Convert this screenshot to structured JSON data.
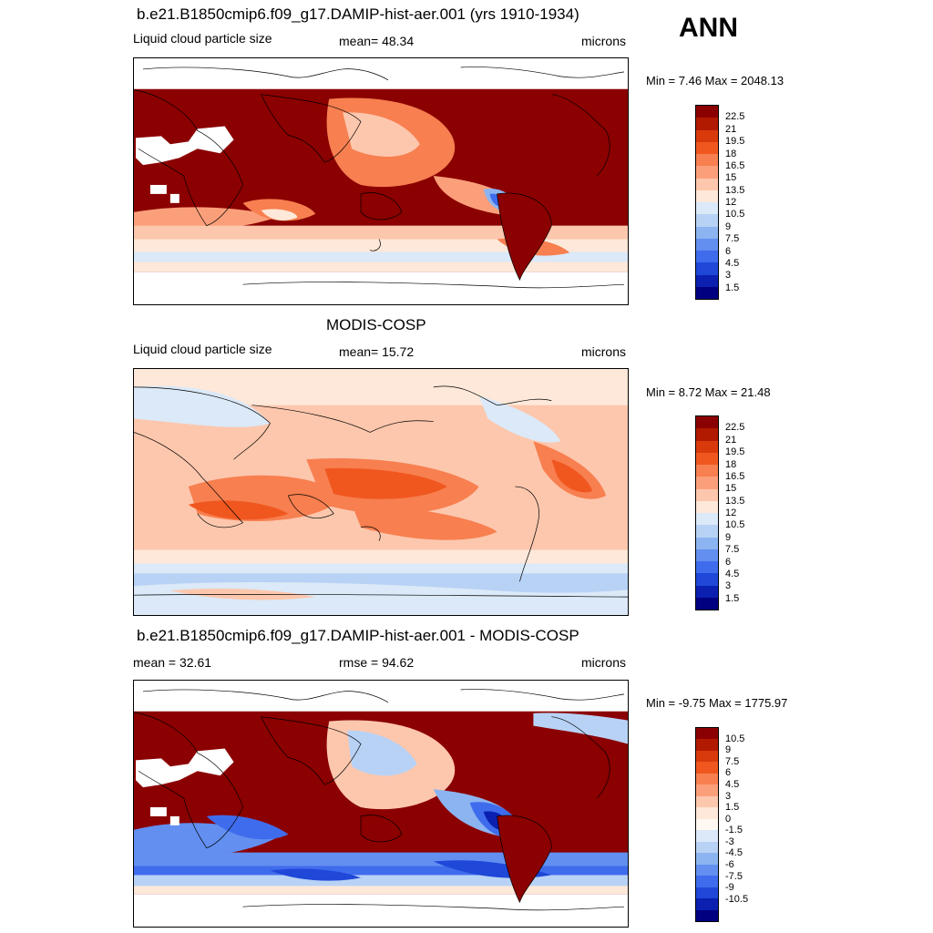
{
  "header": {
    "season": "ANN"
  },
  "panels": [
    {
      "title": "b.e21.B1850cmip6.f09_g17.DAMIP-hist-aer.001 (yrs 1910-1934)",
      "left_label": "Liquid cloud particle size",
      "center_label": "mean=  48.34",
      "right_label": "microns",
      "minmax": "Min =   7.46 Max = 2048.13",
      "colorbar": {
        "colors": [
          "#8b0000",
          "#b21a00",
          "#d93a0c",
          "#f0571f",
          "#f77f50",
          "#fb9f7a",
          "#fdc7ad",
          "#fee8d9",
          "#dbe9f8",
          "#b8d2f5",
          "#8cb4f0",
          "#628ff0",
          "#3f6cec",
          "#1f47d8",
          "#0b20b0",
          "#000080"
        ],
        "ticks": [
          "22.5",
          "21",
          "19.5",
          "18",
          "16.5",
          "15",
          "13.5",
          "12",
          "10.5",
          "9",
          "7.5",
          "6",
          "4.5",
          "3",
          "1.5"
        ]
      }
    },
    {
      "title": "MODIS-COSP",
      "left_label": "Liquid cloud particle size",
      "center_label": "mean=  15.72",
      "right_label": "microns",
      "minmax": "Min =   8.72 Max =  21.48",
      "colorbar": {
        "colors": [
          "#8b0000",
          "#b21a00",
          "#d93a0c",
          "#f0571f",
          "#f77f50",
          "#fb9f7a",
          "#fdc7ad",
          "#fee8d9",
          "#dbe9f8",
          "#b8d2f5",
          "#8cb4f0",
          "#628ff0",
          "#3f6cec",
          "#1f47d8",
          "#0b20b0",
          "#000080"
        ],
        "ticks": [
          "22.5",
          "21",
          "19.5",
          "18",
          "16.5",
          "15",
          "13.5",
          "12",
          "10.5",
          "9",
          "7.5",
          "6",
          "4.5",
          "3",
          "1.5"
        ]
      }
    },
    {
      "title": "b.e21.B1850cmip6.f09_g17.DAMIP-hist-aer.001 - MODIS-COSP",
      "left_label": "mean =  32.61",
      "center_label": "rmse =  94.62",
      "right_label": "microns",
      "minmax": "Min =  -9.75 Max = 1775.97",
      "colorbar": {
        "colors": [
          "#8b0000",
          "#b21a00",
          "#d93a0c",
          "#f0571f",
          "#f77f50",
          "#fb9f7a",
          "#fdc7ad",
          "#fee8d9",
          "#fff8f2",
          "#dbe9f8",
          "#b8d2f5",
          "#8cb4f0",
          "#628ff0",
          "#3f6cec",
          "#1f47d8",
          "#0b20b0",
          "#000080"
        ],
        "ticks": [
          "10.5",
          "9",
          "7.5",
          "6",
          "4.5",
          "3",
          "1.5",
          "0",
          "-1.5",
          "-3",
          "-4.5",
          "-6",
          "-7.5",
          "-9",
          "-10.5"
        ]
      }
    }
  ]
}
